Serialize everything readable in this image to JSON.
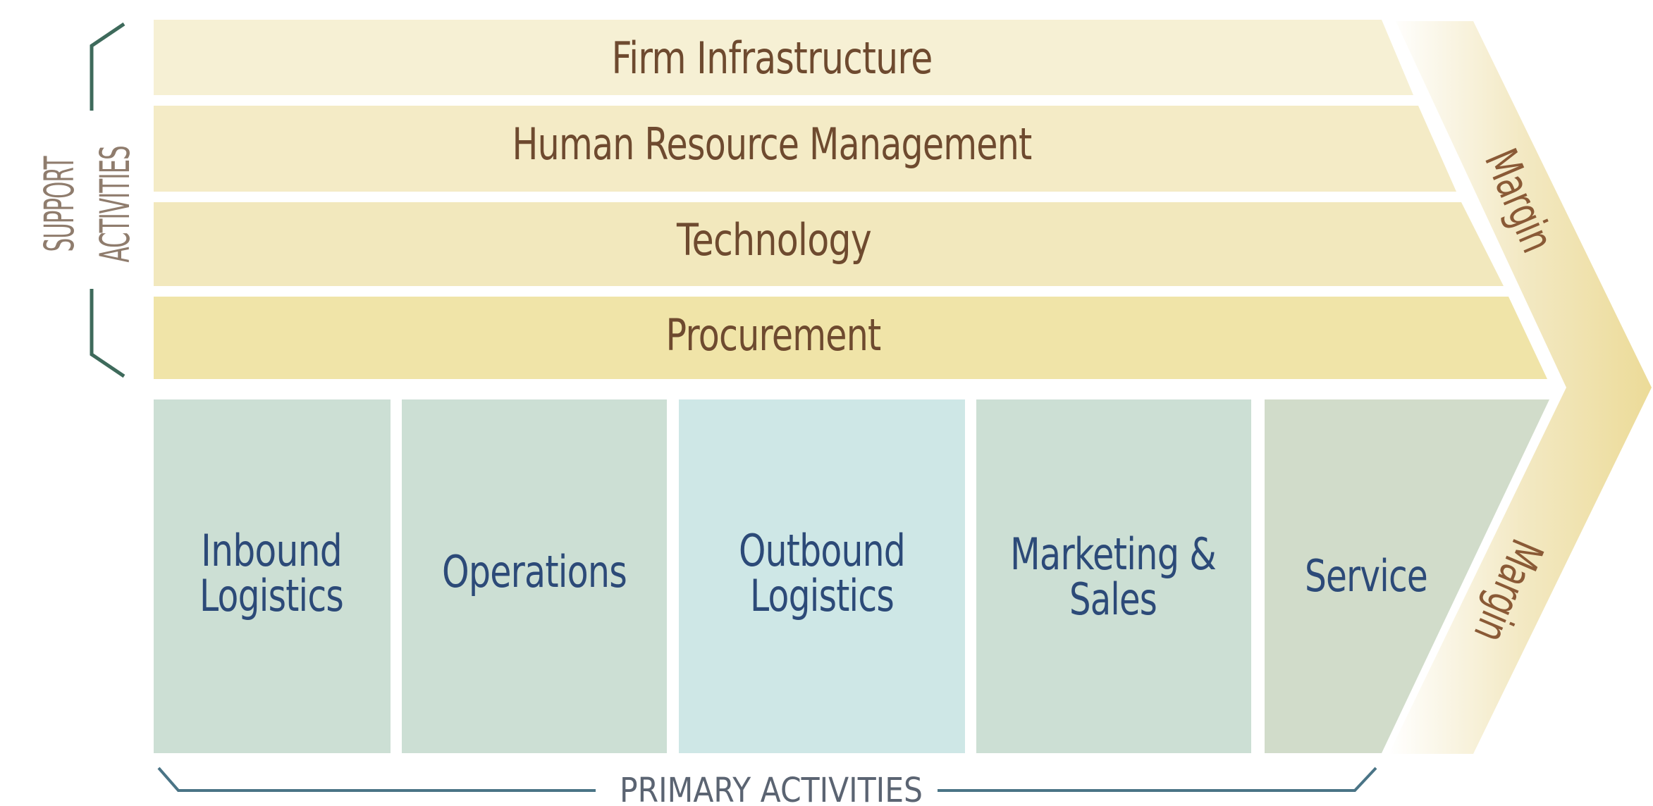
{
  "diagram": {
    "support_label_line1": "SUPPORT",
    "support_label_line2": "ACTIVITIES",
    "primary_label": "PRIMARY ACTIVITIES",
    "support_activities": [
      "Firm Infrastructure",
      "Human Resource Management",
      "Technology",
      "Procurement"
    ],
    "primary_activities": [
      {
        "line1": "Inbound",
        "line2": "Logistics"
      },
      {
        "line1": "Operations",
        "line2": ""
      },
      {
        "line1": "Outbound",
        "line2": "Logistics"
      },
      {
        "line1": "Marketing &",
        "line2": "Sales"
      },
      {
        "line1": "Service",
        "line2": ""
      }
    ],
    "margin_label_top": "Margin",
    "margin_label_bottom": "Margin"
  },
  "colors": {
    "support_band_1": "#f6f0d4",
    "support_band_2": "#f4ebc6",
    "support_band_3": "#f2e8bd",
    "support_band_4": "#f0e4a8",
    "primary_box": "#ccdfd4",
    "primary_box_highlight": "#cee7e6",
    "primary_box_service": "#d1dcca",
    "support_text": "#6e4a2f",
    "primary_text": "#2c4a78",
    "support_bracket": "#3e6a5b",
    "primary_bracket": "#4a7486",
    "margin_fill": "#efe0a0"
  }
}
